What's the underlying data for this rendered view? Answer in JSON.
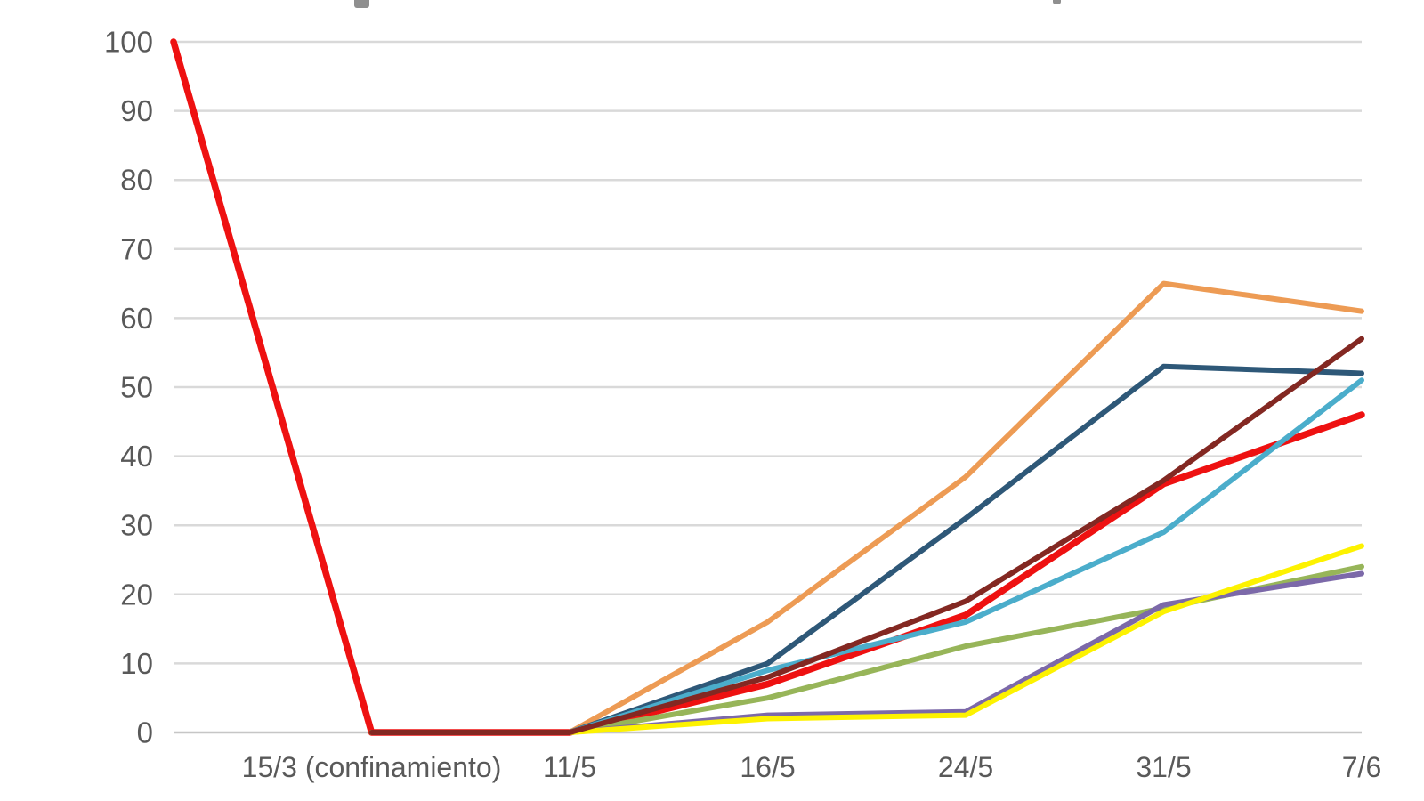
{
  "chart_data": {
    "type": "line",
    "title": "",
    "categories": [
      "",
      "15/3 (confinamiento)",
      "11/5",
      "16/5",
      "24/5",
      "31/5",
      "7/6"
    ],
    "series": [
      {
        "name": "red",
        "color": "#ee1111",
        "values": [
          100,
          0,
          0,
          7,
          17,
          36,
          46
        ]
      },
      {
        "name": "orange",
        "color": "#ed9b54",
        "values": [
          null,
          0,
          0,
          16,
          37,
          65,
          61
        ]
      },
      {
        "name": "navy",
        "color": "#2e5878",
        "values": [
          null,
          0,
          0,
          10,
          31,
          53,
          52
        ]
      },
      {
        "name": "cyan",
        "color": "#4badcb",
        "values": [
          null,
          0,
          0,
          9,
          16,
          29,
          51
        ]
      },
      {
        "name": "olive-green",
        "color": "#97b559",
        "values": [
          null,
          0,
          0,
          5,
          12.5,
          18,
          24
        ]
      },
      {
        "name": "purple",
        "color": "#7c69a9",
        "values": [
          null,
          0,
          0,
          2.5,
          3,
          18.5,
          23
        ]
      },
      {
        "name": "yellow",
        "color": "#fdf200",
        "values": [
          null,
          0,
          0,
          2,
          2.5,
          17.5,
          27
        ]
      },
      {
        "name": "dark-maroon",
        "color": "#832822",
        "values": [
          null,
          0,
          0,
          8,
          19,
          36.5,
          57
        ]
      }
    ],
    "xlabel": "",
    "ylabel": "",
    "ylim": [
      0,
      100
    ],
    "y_tick_step": 10,
    "y_tick_labels": [
      "0",
      "10",
      "20",
      "30",
      "40",
      "50",
      "60",
      "70",
      "80",
      "90",
      "100"
    ],
    "grid": "horizontal",
    "legend_position": "none",
    "style": {
      "gridline_color": "#d9d9d9",
      "axis_line_color": "#c6c6c6",
      "tick_label_color": "#595959",
      "background": "#ffffff"
    }
  }
}
